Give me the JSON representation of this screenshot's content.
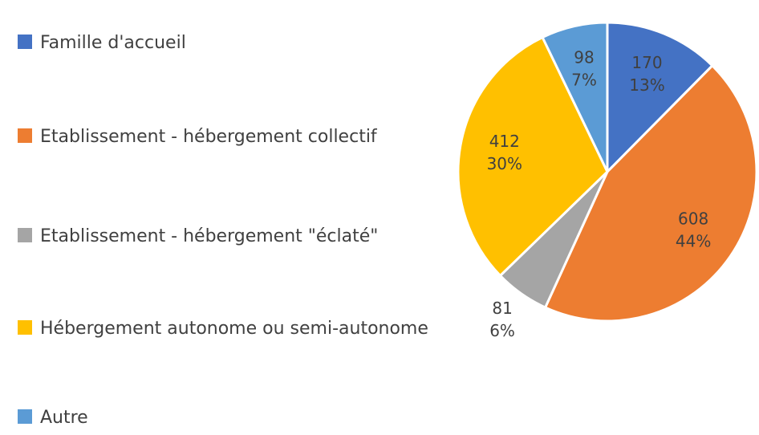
{
  "chart_data": {
    "type": "pie",
    "categories": [
      "Famille d'accueil",
      "Etablissement - hébergement collectif",
      "Etablissement - hébergement \"éclaté\"",
      "Hébergement autonome ou semi-autonome",
      "Autre"
    ],
    "values": [
      170,
      608,
      81,
      412,
      98
    ],
    "percentages": [
      13,
      44,
      6,
      30,
      7
    ],
    "percentage_labels": [
      "13%",
      "44%",
      "6%",
      "30%",
      "7%"
    ],
    "colors": [
      "#4472c4",
      "#ed7d31",
      "#a5a5a5",
      "#ffc000",
      "#5b9bd5"
    ],
    "legend": "left"
  }
}
